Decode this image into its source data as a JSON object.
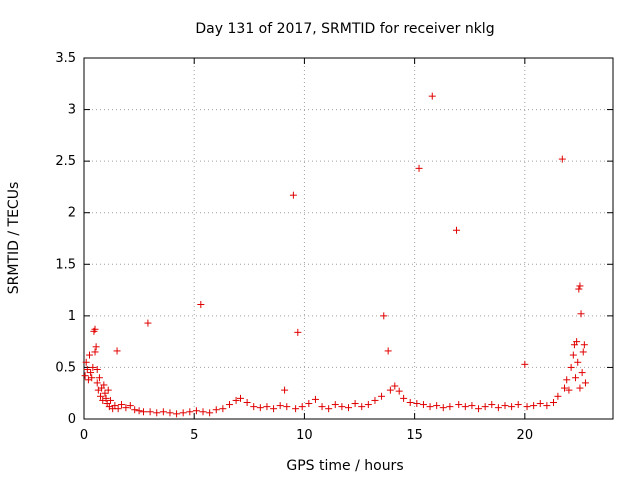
{
  "chart_data": {
    "type": "scatter",
    "title": "Day 131 of 2017, SRMTID for receiver nklg",
    "xlabel": "GPS time / hours",
    "ylabel": "SRMTID / TECUs",
    "xlim": [
      0,
      24
    ],
    "ylim": [
      0,
      3.5
    ],
    "xticks": [
      0,
      5,
      10,
      15,
      20
    ],
    "yticks": [
      0,
      0.5,
      1,
      1.5,
      2,
      2.5,
      3,
      3.5
    ],
    "ytick_labels": [
      "0",
      "0.5",
      "1",
      "1.5",
      "2",
      "2.5",
      "3",
      "3.5"
    ],
    "grid": true,
    "marker": "+",
    "color": "#e00000",
    "series": [
      {
        "name": "SRMTID",
        "points": [
          [
            0.05,
            0.42
          ],
          [
            0.1,
            0.55
          ],
          [
            0.15,
            0.48
          ],
          [
            0.2,
            0.38
          ],
          [
            0.25,
            0.62
          ],
          [
            0.3,
            0.45
          ],
          [
            0.35,
            0.4
          ],
          [
            0.4,
            0.5
          ],
          [
            0.45,
            0.85
          ],
          [
            0.5,
            0.87
          ],
          [
            0.5,
            0.65
          ],
          [
            0.55,
            0.7
          ],
          [
            0.6,
            0.35
          ],
          [
            0.6,
            0.48
          ],
          [
            0.65,
            0.28
          ],
          [
            0.7,
            0.4
          ],
          [
            0.75,
            0.22
          ],
          [
            0.8,
            0.3
          ],
          [
            0.85,
            0.18
          ],
          [
            0.9,
            0.33
          ],
          [
            0.95,
            0.25
          ],
          [
            1.0,
            0.2
          ],
          [
            1.05,
            0.15
          ],
          [
            1.1,
            0.28
          ],
          [
            1.15,
            0.12
          ],
          [
            1.2,
            0.18
          ],
          [
            1.3,
            0.1
          ],
          [
            1.4,
            0.13
          ],
          [
            1.5,
            0.66
          ],
          [
            1.55,
            0.1
          ],
          [
            1.7,
            0.14
          ],
          [
            1.9,
            0.11
          ],
          [
            2.1,
            0.13
          ],
          [
            2.3,
            0.09
          ],
          [
            2.5,
            0.08
          ],
          [
            2.7,
            0.07
          ],
          [
            2.9,
            0.93
          ],
          [
            3.0,
            0.07
          ],
          [
            3.3,
            0.06
          ],
          [
            3.6,
            0.07
          ],
          [
            3.9,
            0.06
          ],
          [
            4.2,
            0.05
          ],
          [
            4.5,
            0.06
          ],
          [
            4.8,
            0.07
          ],
          [
            5.1,
            0.08
          ],
          [
            5.3,
            1.11
          ],
          [
            5.4,
            0.07
          ],
          [
            5.7,
            0.06
          ],
          [
            6.0,
            0.09
          ],
          [
            6.3,
            0.1
          ],
          [
            6.6,
            0.14
          ],
          [
            6.9,
            0.18
          ],
          [
            7.1,
            0.2
          ],
          [
            7.4,
            0.16
          ],
          [
            7.7,
            0.12
          ],
          [
            8.0,
            0.11
          ],
          [
            8.3,
            0.12
          ],
          [
            8.6,
            0.1
          ],
          [
            8.9,
            0.13
          ],
          [
            9.1,
            0.28
          ],
          [
            9.2,
            0.12
          ],
          [
            9.5,
            2.17
          ],
          [
            9.6,
            0.1
          ],
          [
            9.7,
            0.84
          ],
          [
            9.9,
            0.12
          ],
          [
            10.2,
            0.15
          ],
          [
            10.5,
            0.19
          ],
          [
            10.8,
            0.12
          ],
          [
            11.1,
            0.1
          ],
          [
            11.4,
            0.14
          ],
          [
            11.7,
            0.12
          ],
          [
            12.0,
            0.11
          ],
          [
            12.3,
            0.15
          ],
          [
            12.6,
            0.12
          ],
          [
            12.9,
            0.14
          ],
          [
            13.2,
            0.18
          ],
          [
            13.5,
            0.22
          ],
          [
            13.6,
            1.0
          ],
          [
            13.8,
            0.66
          ],
          [
            13.9,
            0.28
          ],
          [
            14.1,
            0.32
          ],
          [
            14.3,
            0.27
          ],
          [
            14.5,
            0.2
          ],
          [
            14.8,
            0.16
          ],
          [
            15.1,
            0.15
          ],
          [
            15.2,
            2.43
          ],
          [
            15.4,
            0.14
          ],
          [
            15.7,
            0.12
          ],
          [
            15.8,
            3.13
          ],
          [
            16.0,
            0.13
          ],
          [
            16.3,
            0.11
          ],
          [
            16.6,
            0.12
          ],
          [
            16.9,
            1.83
          ],
          [
            17.0,
            0.14
          ],
          [
            17.3,
            0.12
          ],
          [
            17.6,
            0.13
          ],
          [
            17.9,
            0.1
          ],
          [
            18.2,
            0.12
          ],
          [
            18.5,
            0.14
          ],
          [
            18.8,
            0.11
          ],
          [
            19.1,
            0.13
          ],
          [
            19.4,
            0.12
          ],
          [
            19.7,
            0.14
          ],
          [
            20.0,
            0.53
          ],
          [
            20.1,
            0.12
          ],
          [
            20.4,
            0.13
          ],
          [
            20.7,
            0.15
          ],
          [
            21.0,
            0.13
          ],
          [
            21.3,
            0.16
          ],
          [
            21.5,
            0.22
          ],
          [
            21.7,
            2.52
          ],
          [
            21.8,
            0.3
          ],
          [
            21.9,
            0.38
          ],
          [
            22.0,
            0.28
          ],
          [
            22.1,
            0.5
          ],
          [
            22.2,
            0.62
          ],
          [
            22.25,
            0.72
          ],
          [
            22.3,
            0.4
          ],
          [
            22.35,
            0.75
          ],
          [
            22.4,
            0.55
          ],
          [
            22.45,
            1.26
          ],
          [
            22.5,
            1.29
          ],
          [
            22.5,
            0.3
          ],
          [
            22.55,
            1.02
          ],
          [
            22.6,
            0.45
          ],
          [
            22.65,
            0.65
          ],
          [
            22.7,
            0.72
          ],
          [
            22.75,
            0.35
          ]
        ]
      }
    ]
  }
}
